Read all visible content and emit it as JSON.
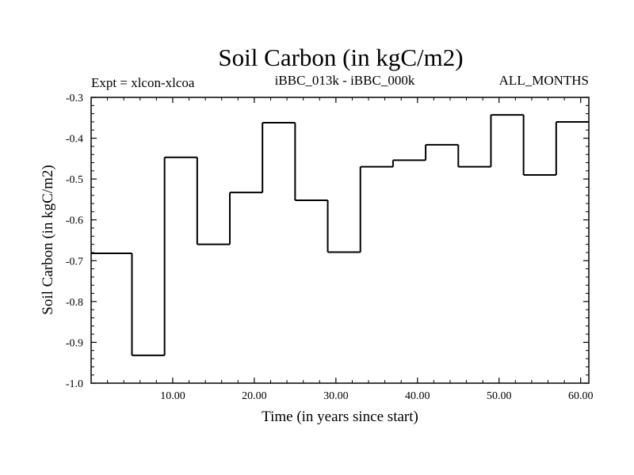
{
  "chart_data": {
    "type": "line",
    "step": true,
    "title": "Soil Carbon (in kgC/m2)",
    "subtitle_left": "Expt = xlcon-xlcoa",
    "subtitle_center": "iBBC_013k - iBBC_000k",
    "subtitle_right": "ALL_MONTHS",
    "xlabel": "Time (in years since start)",
    "ylabel": "Soil Carbon (in kgC/m2)",
    "xlim": [
      0,
      61
    ],
    "ylim": [
      -1.0,
      -0.3
    ],
    "xticks": [
      10,
      20,
      30,
      40,
      50,
      60
    ],
    "xtick_labels": [
      "10.00",
      "20.00",
      "30.00",
      "40.00",
      "50.00",
      "60.00"
    ],
    "yticks": [
      -1.0,
      -0.9,
      -0.8,
      -0.7,
      -0.6,
      -0.5,
      -0.4,
      -0.3
    ],
    "ytick_labels": [
      "-1.0",
      "-0.9",
      "-0.8",
      "-0.7",
      "-0.6",
      "-0.5",
      "-0.4",
      "-0.3"
    ],
    "grid": false,
    "series": [
      {
        "segments": [
          {
            "x0": 0,
            "x1": 5,
            "y": -0.682
          },
          {
            "x0": 5,
            "x1": 9,
            "y": -0.932
          },
          {
            "x0": 9,
            "x1": 13,
            "y": -0.447
          },
          {
            "x0": 13,
            "x1": 17,
            "y": -0.66
          },
          {
            "x0": 17,
            "x1": 21,
            "y": -0.533
          },
          {
            "x0": 21,
            "x1": 25,
            "y": -0.362
          },
          {
            "x0": 25,
            "x1": 29,
            "y": -0.552
          },
          {
            "x0": 29,
            "x1": 33,
            "y": -0.679
          },
          {
            "x0": 33,
            "x1": 37,
            "y": -0.47
          },
          {
            "x0": 37,
            "x1": 41,
            "y": -0.454
          },
          {
            "x0": 41,
            "x1": 45,
            "y": -0.416
          },
          {
            "x0": 45,
            "x1": 49,
            "y": -0.47
          },
          {
            "x0": 49,
            "x1": 53,
            "y": -0.343
          },
          {
            "x0": 53,
            "x1": 57,
            "y": -0.49
          },
          {
            "x0": 57,
            "x1": 61,
            "y": -0.36
          }
        ]
      }
    ]
  }
}
